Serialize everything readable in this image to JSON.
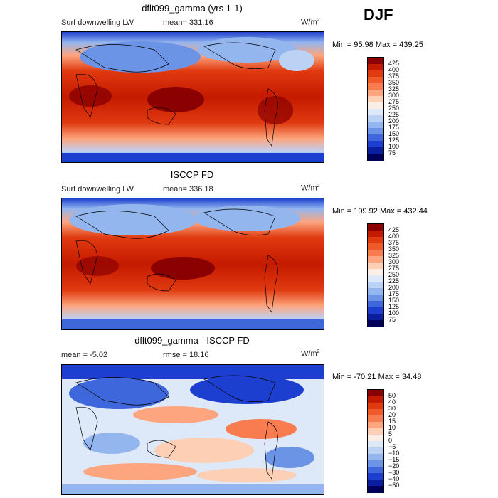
{
  "season": "DJF",
  "panels": [
    {
      "title": "dflt099_gamma (yrs 1-1)",
      "variable": "Surf downwelling LW",
      "mean_text": "mean= 331.16",
      "units_base": "W/m",
      "units_exp": "2",
      "minmax_text": "Min =   95.98 Max = 439.25",
      "colorbar_labels": [
        "425",
        "400",
        "375",
        "350",
        "325",
        "300",
        "275",
        "250",
        "225",
        "200",
        "175",
        "150",
        "125",
        "100",
        "75"
      ],
      "colorbar_colors": [
        "#8b0000",
        "#c41a00",
        "#e03a10",
        "#f05a2a",
        "#f87c4f",
        "#fca57e",
        "#fdd0b5",
        "#fbeee6",
        "#dde8f8",
        "#bcd2f5",
        "#94b6ef",
        "#6b93e6",
        "#3f67dc",
        "#1c3fcf",
        "#0a1fa0",
        "#00005a"
      ]
    },
    {
      "title": "ISCCP FD",
      "variable": "Surf downwelling LW",
      "mean_text": "mean= 336.18",
      "units_base": "W/m",
      "units_exp": "2",
      "minmax_text": "Min = 109.92 Max = 432.44",
      "colorbar_labels": [
        "425",
        "400",
        "375",
        "350",
        "325",
        "300",
        "275",
        "250",
        "225",
        "200",
        "175",
        "150",
        "125",
        "100",
        "75"
      ],
      "colorbar_colors": [
        "#8b0000",
        "#c41a00",
        "#e03a10",
        "#f05a2a",
        "#f87c4f",
        "#fca57e",
        "#fdd0b5",
        "#fbeee6",
        "#dde8f8",
        "#bcd2f5",
        "#94b6ef",
        "#6b93e6",
        "#3f67dc",
        "#1c3fcf",
        "#0a1fa0",
        "#00005a"
      ]
    },
    {
      "title": "dflt099_gamma - ISCCP FD",
      "mean_text": "mean =   -5.02",
      "rmse_text": "rmse =  18.16",
      "units_base": "W/m",
      "units_exp": "2",
      "minmax_text": "Min = -70.21 Max =   34.48",
      "colorbar_labels": [
        "50",
        "40",
        "30",
        "20",
        "15",
        "10",
        "5",
        "0",
        "−5",
        "−10",
        "−15",
        "−20",
        "−30",
        "−40",
        "−50"
      ],
      "colorbar_colors": [
        "#8b0000",
        "#c41a00",
        "#e03a10",
        "#f05a2a",
        "#f87c4f",
        "#fca57e",
        "#fdd0b5",
        "#fbeee6",
        "#dde8f8",
        "#bcd2f5",
        "#94b6ef",
        "#6b93e6",
        "#3f67dc",
        "#1c3fcf",
        "#0a1fa0",
        "#00005a"
      ]
    }
  ]
}
